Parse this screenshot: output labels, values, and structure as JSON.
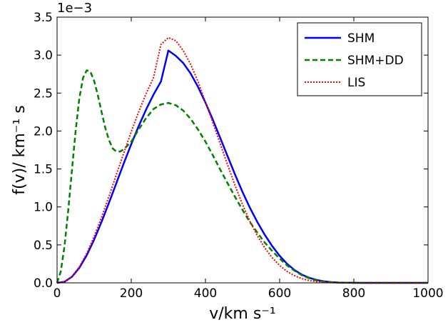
{
  "chart_data": {
    "type": "line",
    "title": "",
    "xlabel": "v/km s⁻¹",
    "ylabel": "f(v)/ km⁻¹ s",
    "xlim": [
      0,
      1000
    ],
    "ylim": [
      0,
      0.0035
    ],
    "y_offset_label": "1e−3",
    "x_ticks": [
      0,
      200,
      400,
      600,
      800,
      1000
    ],
    "x_tick_labels": [
      "0",
      "200",
      "400",
      "600",
      "800",
      "1000"
    ],
    "y_ticks": [
      0,
      0.0005,
      0.001,
      0.0015,
      0.002,
      0.0025,
      0.003,
      0.0035
    ],
    "y_tick_labels": [
      "0.0",
      "0.5",
      "1.0",
      "1.5",
      "2.0",
      "2.5",
      "3.0",
      "3.5"
    ],
    "grid": false,
    "legend": "top-right",
    "series": [
      {
        "name": "SHM",
        "color": "#0000ff",
        "style": "solid",
        "x": [
          0,
          20,
          40,
          60,
          80,
          100,
          120,
          140,
          160,
          180,
          200,
          220,
          240,
          260,
          280,
          300,
          320,
          340,
          360,
          380,
          400,
          420,
          440,
          460,
          480,
          500,
          520,
          540,
          560,
          580,
          600,
          620,
          640,
          660,
          680,
          700,
          720,
          740,
          760,
          780,
          800,
          850,
          900,
          1000
        ],
        "y": [
          0,
          1.4e-05,
          7.9e-05,
          0.000198,
          0.000364,
          0.00057,
          0.000804,
          0.001056,
          0.001316,
          0.001576,
          0.001827,
          0.002065,
          0.002283,
          0.00248,
          0.002652,
          0.00306,
          0.002991,
          0.002896,
          0.002758,
          0.002581,
          0.002375,
          0.002147,
          0.001907,
          0.001664,
          0.001424,
          0.001196,
          0.000987,
          0.0008,
          0.000632,
          0.000484,
          0.000356,
          0.000251,
          0.000169,
          0.000108,
          6.6e-05,
          3.8e-05,
          2e-05,
          1e-05,
          4e-06,
          2e-06,
          1e-06,
          0.0,
          0.0,
          0.0
        ]
      },
      {
        "name": "SHM+DD",
        "color": "#008000",
        "style": "dashed",
        "x": [
          0,
          10,
          20,
          30,
          40,
          50,
          60,
          70,
          80,
          90,
          100,
          110,
          120,
          130,
          140,
          150,
          160,
          170,
          180,
          200,
          220,
          240,
          260,
          280,
          300,
          320,
          340,
          360,
          380,
          400,
          420,
          440,
          460,
          480,
          500,
          520,
          540,
          560,
          580,
          600,
          620,
          640,
          660,
          680,
          700,
          720,
          740,
          760,
          800,
          900,
          1000
        ],
        "y": [
          0,
          0.00015,
          0.00048,
          0.00095,
          0.00148,
          0.002,
          0.00243,
          0.0027,
          0.0028,
          0.00278,
          0.00266,
          0.00247,
          0.00225,
          0.00204,
          0.00188,
          0.00177,
          0.00173,
          0.00173,
          0.00176,
          0.00186,
          0.00202,
          0.00217,
          0.00229,
          0.00235,
          0.00237,
          0.00234,
          0.00227,
          0.00216,
          0.00202,
          0.00186,
          0.00168,
          0.00149,
          0.00131,
          0.00113,
          0.00096,
          0.0008,
          0.00066,
          0.00053,
          0.00042,
          0.00032,
          0.00023,
          0.00016,
          0.0001,
          6e-05,
          3e-05,
          1.6e-05,
          7e-06,
          3e-06,
          0.0,
          0.0,
          0.0
        ]
      },
      {
        "name": "LIS",
        "color": "#ff0000",
        "style": "dotted",
        "x": [
          0,
          20,
          40,
          60,
          80,
          100,
          120,
          140,
          160,
          180,
          200,
          220,
          240,
          260,
          280,
          300,
          320,
          340,
          360,
          380,
          400,
          420,
          440,
          460,
          480,
          500,
          520,
          540,
          560,
          580,
          600,
          620,
          640,
          660,
          680,
          700,
          720,
          740,
          760,
          800,
          900,
          1000
        ],
        "y": [
          0,
          1.5e-05,
          8.4e-05,
          0.000211,
          0.00039,
          0.000612,
          0.000866,
          0.001141,
          0.001427,
          0.001713,
          0.001991,
          0.002253,
          0.002492,
          0.002703,
          0.00314,
          0.00323,
          0.00319,
          0.00306,
          0.00288,
          0.00265,
          0.00238,
          0.00211,
          0.00183,
          0.00155,
          0.00128,
          0.00103,
          0.00081,
          0.00062,
          0.00046,
          0.00033,
          0.00023,
          0.00015,
          9.5e-05,
          5.5e-05,
          3e-05,
          1.5e-05,
          7e-06,
          3e-06,
          1e-06,
          0.0,
          0.0,
          0.0
        ]
      }
    ]
  }
}
